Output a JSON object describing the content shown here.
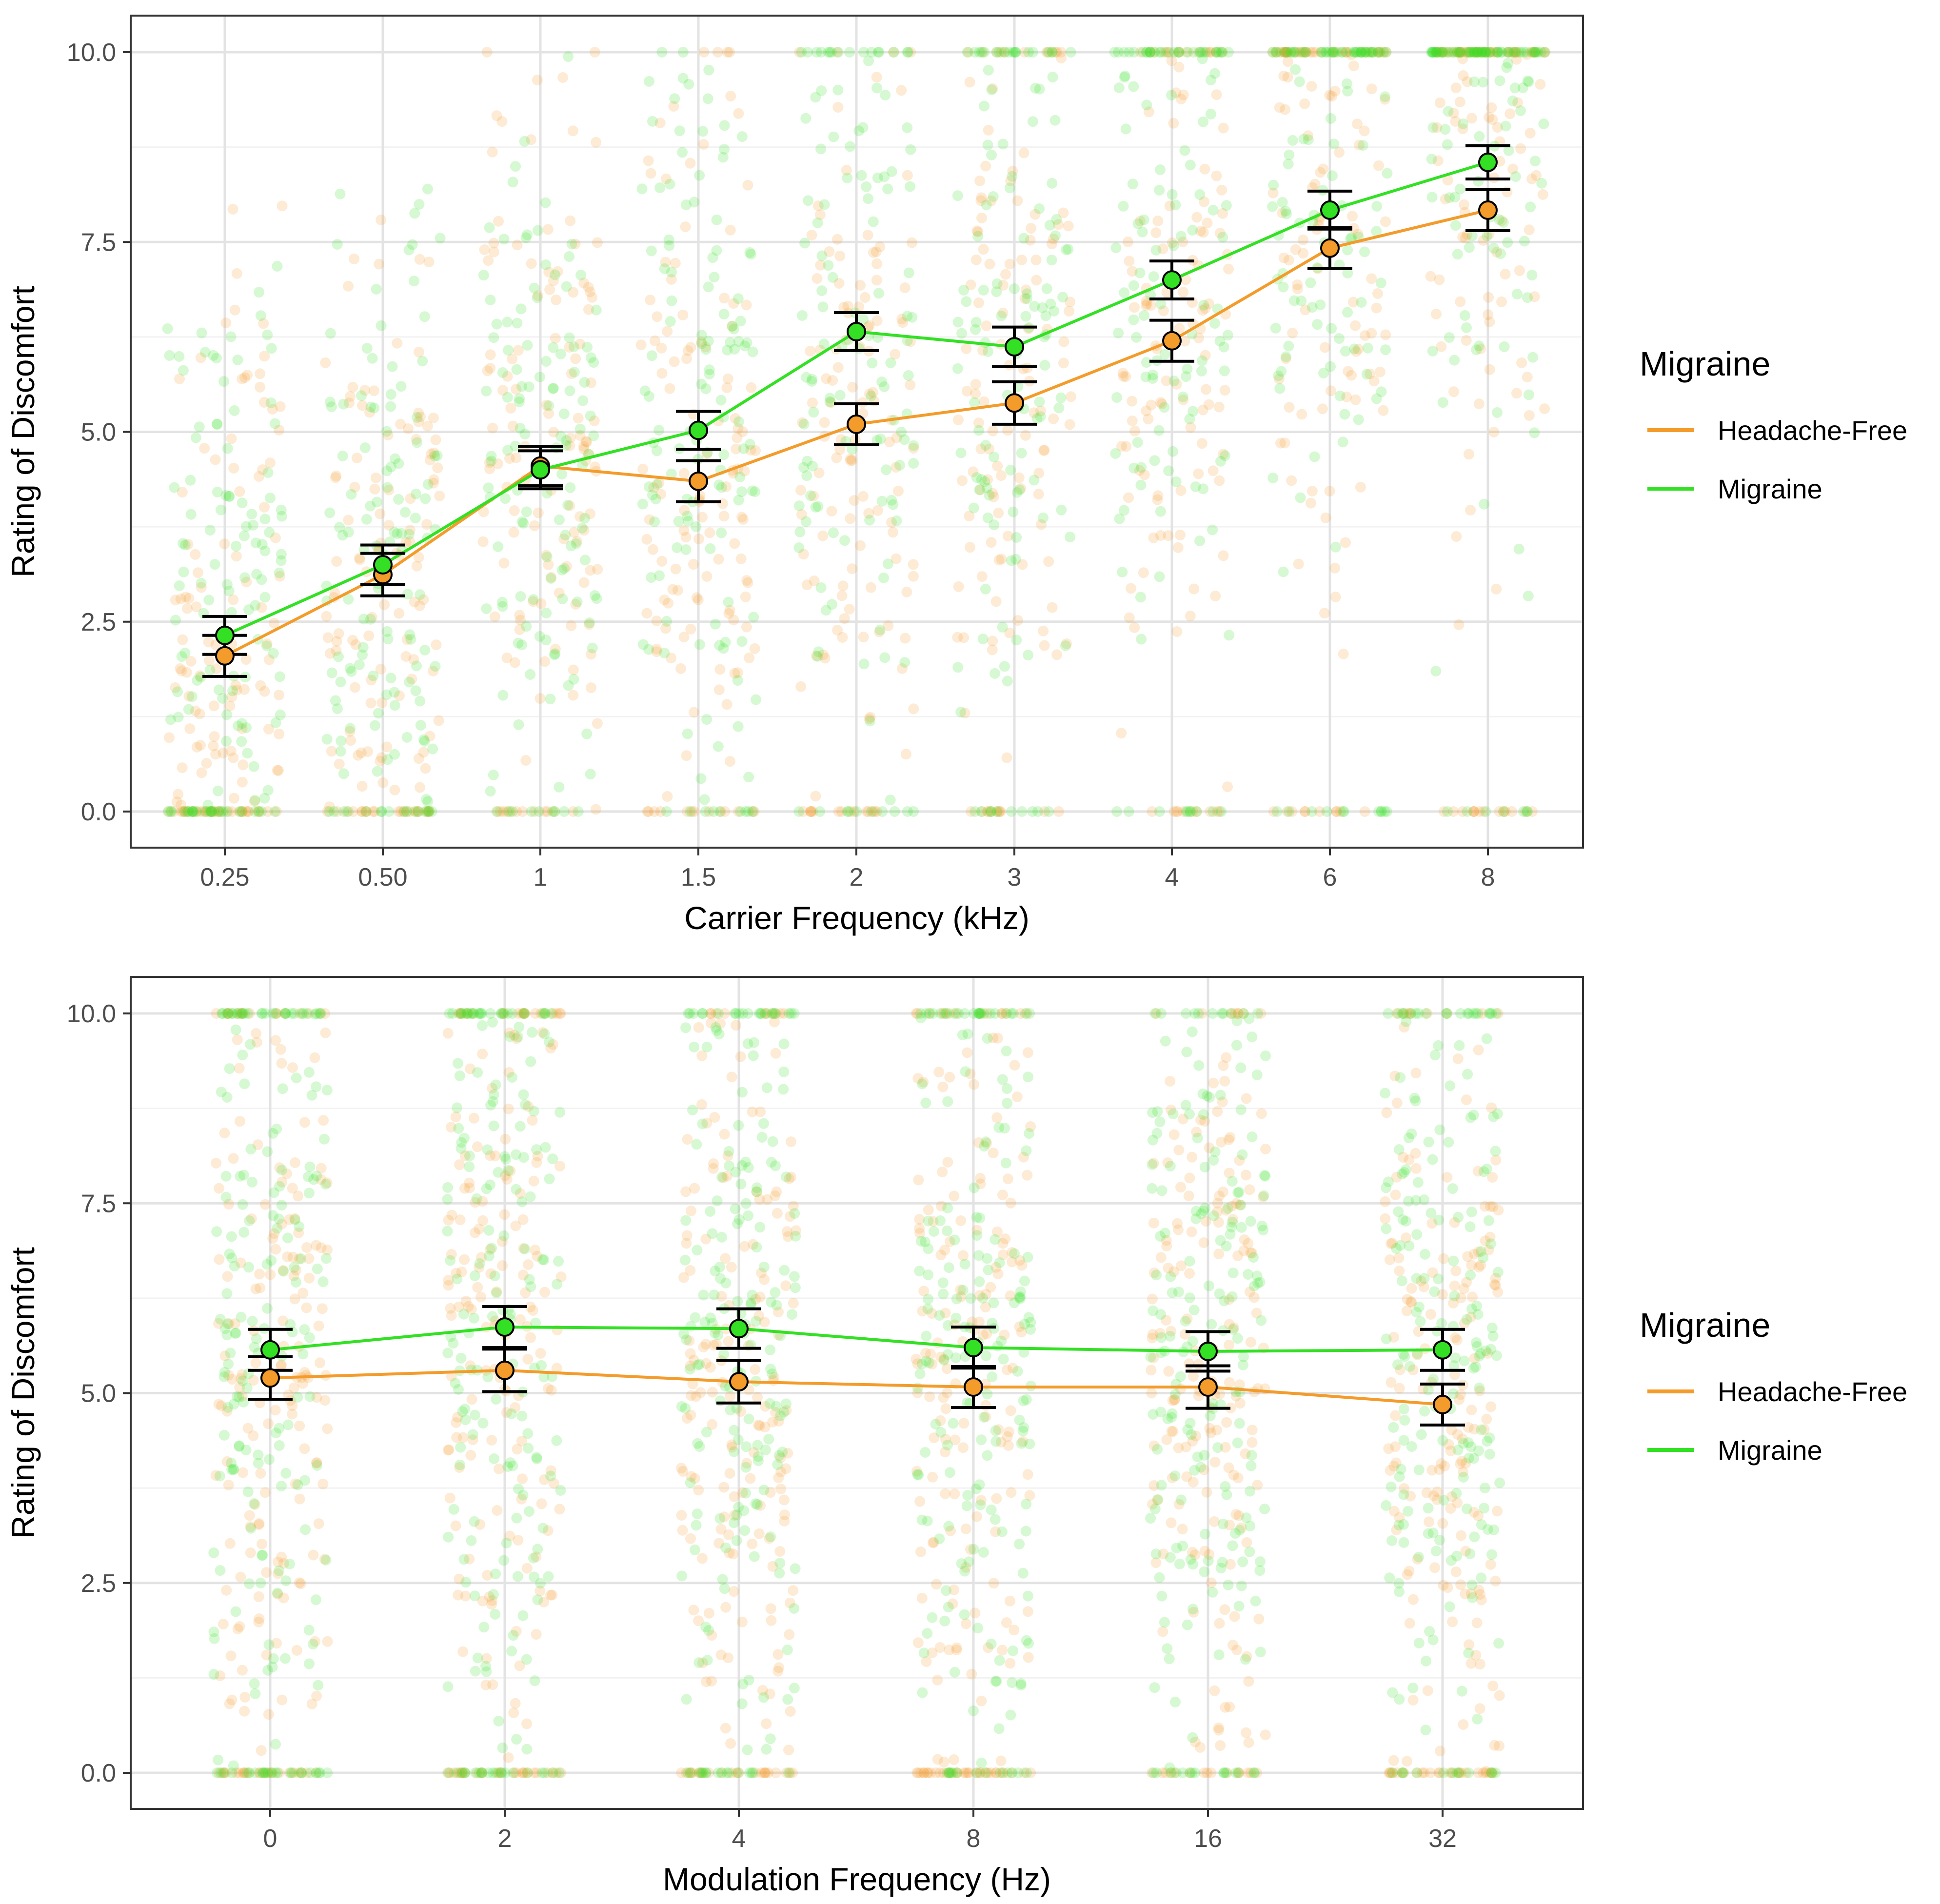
{
  "legend": {
    "title": "Migraine",
    "entries": [
      {
        "label": "Headache-Free",
        "color": "#f39c2b"
      },
      {
        "label": "Migraine",
        "color": "#33e024"
      }
    ]
  },
  "chart_data": [
    {
      "type": "scatter",
      "subtype": "jittered points with group means and standard-error bars",
      "xlabel": "Carrier Frequency (kHz)",
      "ylabel": "Rating of Discomfort",
      "ylim": [
        0,
        10
      ],
      "y_ticks": [
        "0.0",
        "2.5",
        "5.0",
        "7.5",
        "10.0"
      ],
      "categories": [
        "0.25",
        "0.50",
        "1",
        "1.5",
        "2",
        "3",
        "4",
        "6",
        "8"
      ],
      "legend_position": "right",
      "series": [
        {
          "name": "Headache-Free",
          "color": "#f39c2b",
          "mean": [
            2.05,
            3.12,
            4.55,
            4.35,
            5.1,
            5.38,
            6.2,
            7.42,
            7.92
          ],
          "error": [
            0.27,
            0.28,
            0.26,
            0.27,
            0.27,
            0.28,
            0.27,
            0.27,
            0.27
          ]
        },
        {
          "name": "Migraine",
          "color": "#33e024",
          "mean": [
            2.32,
            3.25,
            4.5,
            5.02,
            6.32,
            6.12,
            7.0,
            7.92,
            8.55
          ],
          "error": [
            0.25,
            0.26,
            0.25,
            0.25,
            0.25,
            0.26,
            0.25,
            0.25,
            0.22
          ]
        }
      ]
    },
    {
      "type": "scatter",
      "subtype": "jittered points with group means and standard-error bars",
      "xlabel": "Modulation Frequency (Hz)",
      "ylabel": "Rating of Discomfort",
      "ylim": [
        0,
        10
      ],
      "y_ticks": [
        "0.0",
        "2.5",
        "5.0",
        "7.5",
        "10.0"
      ],
      "categories": [
        "0",
        "2",
        "4",
        "8",
        "16",
        "32"
      ],
      "legend_position": "right",
      "series": [
        {
          "name": "Headache-Free",
          "color": "#f39c2b",
          "mean": [
            5.2,
            5.3,
            5.15,
            5.08,
            5.08,
            4.85
          ],
          "error": [
            0.28,
            0.28,
            0.28,
            0.27,
            0.28,
            0.27
          ]
        },
        {
          "name": "Migraine",
          "color": "#33e024",
          "mean": [
            5.57,
            5.87,
            5.85,
            5.6,
            5.55,
            5.57
          ],
          "error": [
            0.27,
            0.27,
            0.26,
            0.27,
            0.26,
            0.27
          ]
        }
      ]
    }
  ]
}
